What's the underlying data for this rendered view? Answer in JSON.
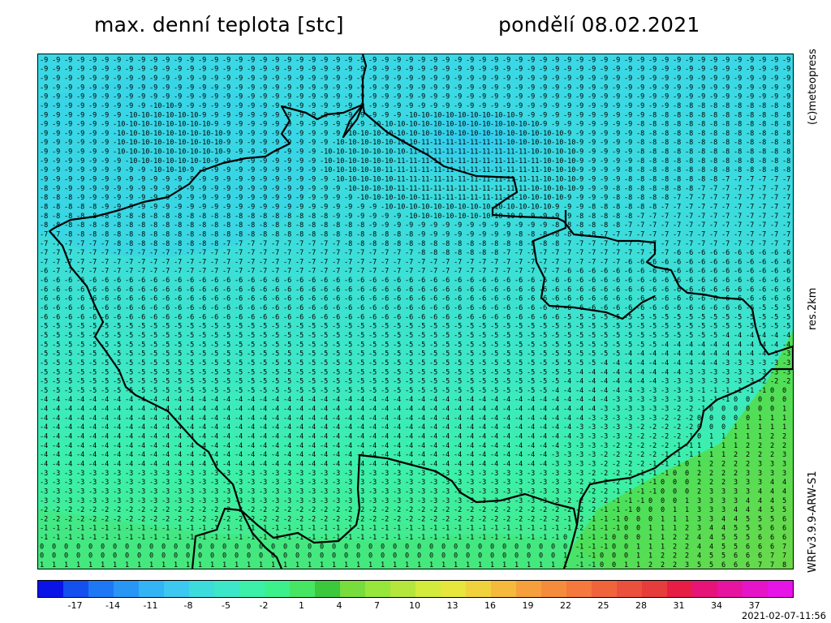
{
  "header": {
    "title": "max. denní teplota [stc]",
    "date": "pondělí 08.02.2021"
  },
  "side_labels": {
    "copyright": "(c)meteopress",
    "resolution": "res.2km",
    "model": "WRFv3.9.9-ARW-S1"
  },
  "timestamp": "2021-02-07-11:56",
  "map": {
    "variable": "max. denní teplota",
    "unit": "stc",
    "grid_summary": {
      "north_west": "-9 to -11",
      "central": "-5 to -8",
      "south_west": "-2 to 1",
      "south_east": "2 to 6"
    }
  },
  "colorbar": {
    "tick_labels": [
      "-17",
      "-14",
      "-11",
      "-8",
      "-5",
      "-2",
      "1",
      "4",
      "7",
      "10",
      "13",
      "16",
      "19",
      "22",
      "25",
      "28",
      "31",
      "34",
      "37"
    ],
    "colors": [
      "#0a14e6",
      "#1450f0",
      "#1e78f5",
      "#2896f5",
      "#32b4f5",
      "#3cc8f0",
      "#3cdcdc",
      "#3ce6c8",
      "#3cf0aa",
      "#3cf08c",
      "#46e664",
      "#3cc83c",
      "#78dc3c",
      "#96e63c",
      "#b4e63c",
      "#d2eb3c",
      "#e6e63c",
      "#f0d23c",
      "#f5b93c",
      "#f5a03c",
      "#f58c3c",
      "#f5783c",
      "#f0643c",
      "#eb503c",
      "#e63c3c",
      "#e61e46",
      "#e61478",
      "#e614a0",
      "#e614c8",
      "#e614e6"
    ]
  }
}
